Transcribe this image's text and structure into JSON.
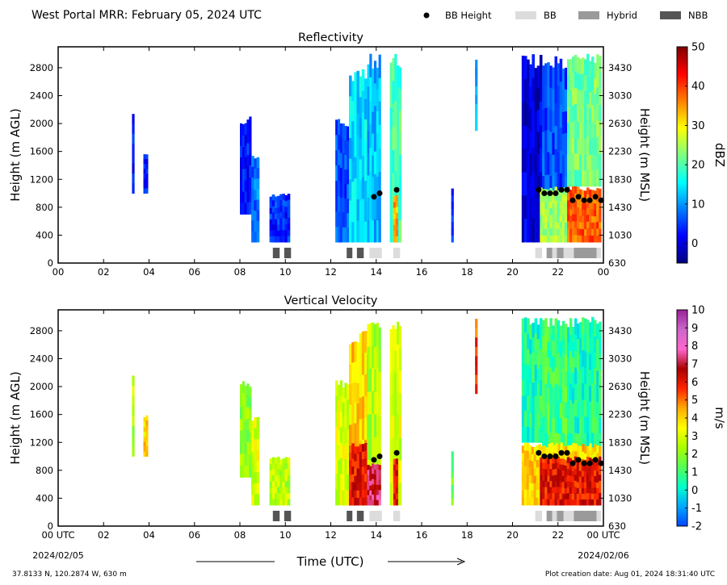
{
  "header": {
    "title": "West Portal MRR:  February 05, 2024 UTC",
    "legend": [
      {
        "label": "BB Height",
        "kind": "dot",
        "color": "#000000"
      },
      {
        "label": "BB",
        "kind": "box",
        "color": "#dcdcdc"
      },
      {
        "label": "Hybrid",
        "kind": "box",
        "color": "#9a9a9a"
      },
      {
        "label": "NBB",
        "kind": "box",
        "color": "#555555"
      }
    ]
  },
  "footer": {
    "coords": "37.8133 N, 120.2874 W, 630 m",
    "creation": "Plot creation date: Aug 01, 2024 18:31:40 UTC",
    "start_date": "2024/02/05",
    "end_date": "2024/02/06",
    "xlabel": "Time (UTC)"
  },
  "chart_data": [
    {
      "type": "heatmap",
      "title": "Reflectivity",
      "ylabel": "Height (m AGL)",
      "ylabel_right": "Height (m MSL)",
      "xlim": [
        0,
        24
      ],
      "ylim": [
        0,
        3100
      ],
      "x_ticks": [
        "00",
        "02",
        "04",
        "06",
        "08",
        "10",
        "12",
        "14",
        "16",
        "18",
        "20",
        "22",
        "00"
      ],
      "y_ticks": [
        0,
        400,
        800,
        1200,
        1600,
        2000,
        2400,
        2800
      ],
      "y_ticks_right": [
        "630",
        "1030",
        "1430",
        "1830",
        "2230",
        "2630",
        "3030",
        "3430"
      ],
      "colorbar": {
        "label": "dBZ",
        "min": -5,
        "max": 50,
        "ticks": [
          0,
          10,
          20,
          30,
          40,
          50
        ],
        "palette": "jet",
        "colors": [
          "#00007f",
          "#0000ff",
          "#007fff",
          "#00ffff",
          "#7fff7f",
          "#ffff00",
          "#ff7f00",
          "#ff0000",
          "#7f0000"
        ]
      },
      "bb_height": [
        [
          13.9,
          950
        ],
        [
          14.15,
          1000
        ],
        [
          14.9,
          1050
        ],
        [
          21.15,
          1050
        ],
        [
          21.4,
          1000
        ],
        [
          21.65,
          1000
        ],
        [
          21.9,
          1000
        ],
        [
          22.15,
          1050
        ],
        [
          22.4,
          1050
        ],
        [
          22.65,
          900
        ],
        [
          22.9,
          950
        ],
        [
          23.15,
          900
        ],
        [
          23.4,
          900
        ],
        [
          23.65,
          950
        ],
        [
          23.9,
          900
        ]
      ],
      "bb_type": [
        {
          "start": 9.45,
          "end": 9.75,
          "type": "NBB"
        },
        {
          "start": 9.95,
          "end": 10.25,
          "type": "NBB"
        },
        {
          "start": 12.7,
          "end": 12.95,
          "type": "NBB"
        },
        {
          "start": 13.15,
          "end": 13.45,
          "type": "NBB"
        },
        {
          "start": 13.7,
          "end": 14.25,
          "type": "BB"
        },
        {
          "start": 14.75,
          "end": 15.05,
          "type": "BB"
        },
        {
          "start": 21.0,
          "end": 21.3,
          "type": "BB"
        },
        {
          "start": 21.5,
          "end": 21.75,
          "type": "Hybrid"
        },
        {
          "start": 21.75,
          "end": 21.95,
          "type": "BB"
        },
        {
          "start": 21.95,
          "end": 22.25,
          "type": "Hybrid"
        },
        {
          "start": 22.25,
          "end": 22.7,
          "type": "BB"
        },
        {
          "start": 22.7,
          "end": 23.7,
          "type": "Hybrid"
        },
        {
          "start": 23.7,
          "end": 23.9,
          "type": "BB"
        }
      ],
      "echoes": [
        {
          "x0": 3.25,
          "x1": 3.35,
          "y0": 1000,
          "y1": 2200,
          "v": 2
        },
        {
          "x0": 3.75,
          "x1": 3.95,
          "y0": 1000,
          "y1": 1600,
          "v": 3
        },
        {
          "x0": 8.0,
          "x1": 8.5,
          "y0": 700,
          "y1": 2100,
          "v": 3
        },
        {
          "x0": 8.5,
          "x1": 8.85,
          "y0": 300,
          "y1": 1600,
          "v": 8
        },
        {
          "x0": 9.3,
          "x1": 10.2,
          "y0": 300,
          "y1": 1000,
          "v": 4
        },
        {
          "x0": 12.2,
          "x1": 12.9,
          "y0": 300,
          "y1": 2100,
          "v": 6
        },
        {
          "x0": 12.8,
          "x1": 13.7,
          "y0": 300,
          "y1": 2800,
          "v": 14
        },
        {
          "x0": 13.6,
          "x1": 14.2,
          "y0": 300,
          "y1": 3000,
          "v": 12
        },
        {
          "x0": 14.6,
          "x1": 15.1,
          "y0": 300,
          "y1": 3000,
          "v": 20
        },
        {
          "x0": 14.75,
          "x1": 14.95,
          "y0": 300,
          "y1": 1000,
          "v": 34
        },
        {
          "x0": 17.3,
          "x1": 17.4,
          "y0": 300,
          "y1": 1100,
          "v": 4
        },
        {
          "x0": 18.35,
          "x1": 18.45,
          "y0": 1900,
          "y1": 3000,
          "v": 10
        },
        {
          "x0": 20.4,
          "x1": 21.3,
          "y0": 300,
          "y1": 3000,
          "v": 0
        },
        {
          "x0": 21.3,
          "x1": 22.4,
          "y0": 300,
          "y1": 3000,
          "v": 6
        },
        {
          "x0": 21.2,
          "x1": 22.5,
          "y0": 300,
          "y1": 1100,
          "v": 24
        },
        {
          "x0": 22.4,
          "x1": 23.9,
          "y0": 1100,
          "y1": 3000,
          "v": 22
        },
        {
          "x0": 22.4,
          "x1": 23.9,
          "y0": 300,
          "y1": 1100,
          "v": 38
        }
      ]
    },
    {
      "type": "heatmap",
      "title": "Vertical Velocity",
      "ylabel": "Height (m AGL)",
      "ylabel_right": "Height (m MSL)",
      "xlim": [
        0,
        24
      ],
      "ylim": [
        0,
        3100
      ],
      "x_ticks": [
        "00 UTC",
        "02",
        "04",
        "06",
        "08",
        "10",
        "12",
        "14",
        "16",
        "18",
        "20",
        "22",
        "00 UTC"
      ],
      "y_ticks": [
        0,
        400,
        800,
        1200,
        1600,
        2000,
        2400,
        2800
      ],
      "y_ticks_right": [
        "630",
        "1030",
        "1430",
        "1830",
        "2230",
        "2630",
        "3030",
        "3430"
      ],
      "colorbar": {
        "label": "m/s",
        "min": -2,
        "max": 10,
        "ticks": [
          -2,
          -1,
          0,
          1,
          2,
          3,
          4,
          5,
          6,
          7,
          8,
          9,
          10
        ],
        "palette": "custom",
        "colors": [
          "#0044ff",
          "#00a8ff",
          "#00ffcc",
          "#55ff55",
          "#aaff00",
          "#ffff00",
          "#ffaa00",
          "#ff2200",
          "#aa0000",
          "#ff66cc",
          "#cc66cc",
          "#992299"
        ]
      },
      "bb_height": [
        [
          13.9,
          950
        ],
        [
          14.15,
          1000
        ],
        [
          14.9,
          1050
        ],
        [
          21.15,
          1050
        ],
        [
          21.4,
          1000
        ],
        [
          21.65,
          1000
        ],
        [
          21.9,
          1000
        ],
        [
          22.15,
          1050
        ],
        [
          22.4,
          1050
        ],
        [
          22.65,
          900
        ],
        [
          22.9,
          950
        ],
        [
          23.15,
          900
        ],
        [
          23.4,
          900
        ],
        [
          23.65,
          950
        ],
        [
          23.9,
          900
        ]
      ],
      "bb_type": [
        {
          "start": 9.45,
          "end": 9.75,
          "type": "NBB"
        },
        {
          "start": 9.95,
          "end": 10.25,
          "type": "NBB"
        },
        {
          "start": 12.7,
          "end": 12.95,
          "type": "NBB"
        },
        {
          "start": 13.15,
          "end": 13.45,
          "type": "NBB"
        },
        {
          "start": 13.7,
          "end": 14.25,
          "type": "BB"
        },
        {
          "start": 14.75,
          "end": 15.05,
          "type": "BB"
        },
        {
          "start": 21.0,
          "end": 21.3,
          "type": "BB"
        },
        {
          "start": 21.5,
          "end": 21.75,
          "type": "Hybrid"
        },
        {
          "start": 21.75,
          "end": 21.95,
          "type": "BB"
        },
        {
          "start": 21.95,
          "end": 22.25,
          "type": "Hybrid"
        },
        {
          "start": 22.25,
          "end": 22.7,
          "type": "BB"
        },
        {
          "start": 22.7,
          "end": 23.7,
          "type": "Hybrid"
        },
        {
          "start": 23.7,
          "end": 23.9,
          "type": "BB"
        }
      ],
      "echoes": [
        {
          "x0": 3.25,
          "x1": 3.35,
          "y0": 1000,
          "y1": 2200,
          "v": 2.5
        },
        {
          "x0": 3.75,
          "x1": 3.95,
          "y0": 1000,
          "y1": 1600,
          "v": 4
        },
        {
          "x0": 8.0,
          "x1": 8.5,
          "y0": 700,
          "y1": 2100,
          "v": 2
        },
        {
          "x0": 8.5,
          "x1": 8.85,
          "y0": 300,
          "y1": 1600,
          "v": 3
        },
        {
          "x0": 9.3,
          "x1": 10.2,
          "y0": 300,
          "y1": 1000,
          "v": 2.5
        },
        {
          "x0": 12.2,
          "x1": 12.9,
          "y0": 300,
          "y1": 2100,
          "v": 3
        },
        {
          "x0": 12.8,
          "x1": 13.7,
          "y0": 300,
          "y1": 2800,
          "v": 4
        },
        {
          "x0": 12.8,
          "x1": 13.7,
          "y0": 300,
          "y1": 1200,
          "v": 6
        },
        {
          "x0": 13.6,
          "x1": 14.2,
          "y0": 300,
          "y1": 3000,
          "v": 2.5
        },
        {
          "x0": 13.6,
          "x1": 14.2,
          "y0": 300,
          "y1": 900,
          "v": 7
        },
        {
          "x0": 14.6,
          "x1": 15.1,
          "y0": 300,
          "y1": 3000,
          "v": 3
        },
        {
          "x0": 14.75,
          "x1": 14.95,
          "y0": 300,
          "y1": 1000,
          "v": 6
        },
        {
          "x0": 17.3,
          "x1": 17.4,
          "y0": 300,
          "y1": 1100,
          "v": 1.5
        },
        {
          "x0": 18.35,
          "x1": 18.45,
          "y0": 1900,
          "y1": 3000,
          "v": 5.5
        },
        {
          "x0": 20.4,
          "x1": 21.3,
          "y0": 1200,
          "y1": 3000,
          "v": 0.5
        },
        {
          "x0": 21.3,
          "x1": 22.4,
          "y0": 1100,
          "y1": 3000,
          "v": 1
        },
        {
          "x0": 22.4,
          "x1": 23.9,
          "y0": 1100,
          "y1": 3000,
          "v": 0.5
        },
        {
          "x0": 20.4,
          "x1": 23.9,
          "y0": 300,
          "y1": 1200,
          "v": 4
        },
        {
          "x0": 21.2,
          "x1": 23.9,
          "y0": 300,
          "y1": 1000,
          "v": 6
        }
      ]
    }
  ]
}
